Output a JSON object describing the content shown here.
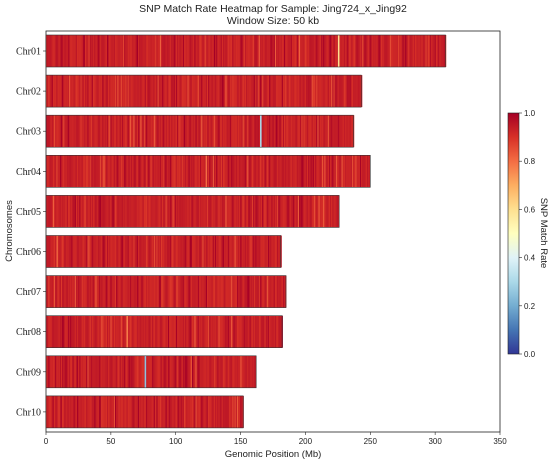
{
  "chart_data": {
    "type": "heatmap",
    "title": "SNP Match Rate Heatmap for Sample: Jing724_x_Jing92",
    "subtitle": "Window Size: 50 kb",
    "xlabel": "Genomic Position (Mb)",
    "ylabel": "Chromosomes",
    "xlim": [
      0,
      350
    ],
    "xticks": [
      "0",
      "50",
      "100",
      "150",
      "200",
      "250",
      "300",
      "350"
    ],
    "chromosomes": [
      {
        "name": "Chr01",
        "length": 308
      },
      {
        "name": "Chr02",
        "length": 243
      },
      {
        "name": "Chr03",
        "length": 237
      },
      {
        "name": "Chr04",
        "length": 250
      },
      {
        "name": "Chr05",
        "length": 226
      },
      {
        "name": "Chr06",
        "length": 181
      },
      {
        "name": "Chr07",
        "length": 185
      },
      {
        "name": "Chr08",
        "length": 182
      },
      {
        "name": "Chr09",
        "length": 162
      },
      {
        "name": "Chr10",
        "length": 152
      }
    ],
    "colorbar": {
      "label": "SNP Match Rate",
      "range": [
        0.0,
        1.0
      ],
      "ticks": [
        "0.0",
        "0.2",
        "0.4",
        "0.6",
        "0.8",
        "1.0"
      ],
      "colormap": [
        "#313695",
        "#4575b4",
        "#74add1",
        "#abd9e9",
        "#e0f3f8",
        "#ffffbf",
        "#fee090",
        "#fdae61",
        "#f46d43",
        "#d73027",
        "#a50026"
      ]
    },
    "dominant_value": 0.93,
    "notable_low_windows": [
      {
        "chromosome": "Chr01",
        "position": 225,
        "value": 0.6
      },
      {
        "chromosome": "Chr03",
        "position": 165,
        "value": 0.3
      },
      {
        "chromosome": "Chr04",
        "position": 123,
        "value": 0.8
      },
      {
        "chromosome": "Chr06",
        "position": 8,
        "value": 0.82
      },
      {
        "chromosome": "Chr08",
        "position": 62,
        "value": 0.78
      },
      {
        "chromosome": "Chr09",
        "position": 76,
        "value": 0.25
      }
    ]
  }
}
